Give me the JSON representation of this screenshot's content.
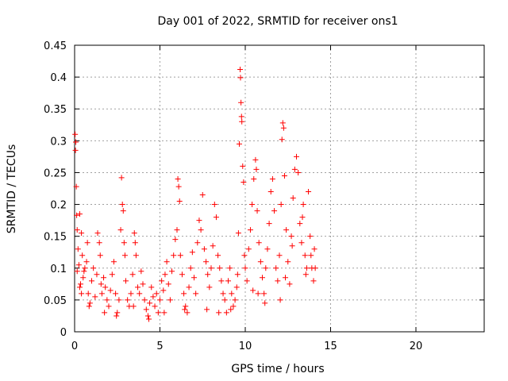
{
  "chart_data": {
    "type": "scatter",
    "title": "Day 001 of 2022, SRMTID for receiver ons1",
    "xlabel": "GPS time / hours",
    "ylabel": "SRMTID / TECUs",
    "xlim": [
      0,
      24
    ],
    "ylim": [
      0,
      0.45
    ],
    "xticks": [
      0,
      5,
      10,
      15,
      20
    ],
    "yticks": [
      0,
      0.05,
      0.1,
      0.15,
      0.2,
      0.25,
      0.3,
      0.35,
      0.4,
      0.45
    ],
    "grid": true,
    "marker": "+",
    "series": [
      {
        "name": "SRMTID",
        "color": "#ff0000",
        "points": [
          [
            0.03,
            0.31
          ],
          [
            0.05,
            0.285
          ],
          [
            0.07,
            0.298
          ],
          [
            0.1,
            0.228
          ],
          [
            0.12,
            0.183
          ],
          [
            0.15,
            0.16
          ],
          [
            0.2,
            0.13
          ],
          [
            0.25,
            0.105
          ],
          [
            0.3,
            0.07
          ],
          [
            0.4,
            0.06
          ],
          [
            0.5,
            0.085
          ],
          [
            0.6,
            0.1
          ],
          [
            0.3,
            0.185
          ],
          [
            0.4,
            0.155
          ],
          [
            0.45,
            0.12
          ],
          [
            0.55,
            0.095
          ],
          [
            0.7,
            0.11
          ],
          [
            0.75,
            0.14
          ],
          [
            0.8,
            0.06
          ],
          [
            0.9,
            0.045
          ],
          [
            1.0,
            0.08
          ],
          [
            1.1,
            0.1
          ],
          [
            1.2,
            0.055
          ],
          [
            1.3,
            0.09
          ],
          [
            1.35,
            0.155
          ],
          [
            1.45,
            0.14
          ],
          [
            1.5,
            0.12
          ],
          [
            1.55,
            0.075
          ],
          [
            1.6,
            0.06
          ],
          [
            1.7,
            0.085
          ],
          [
            1.8,
            0.07
          ],
          [
            1.9,
            0.05
          ],
          [
            2.0,
            0.04
          ],
          [
            2.1,
            0.065
          ],
          [
            2.2,
            0.09
          ],
          [
            2.3,
            0.11
          ],
          [
            2.4,
            0.06
          ],
          [
            2.5,
            0.03
          ],
          [
            2.6,
            0.05
          ],
          [
            2.7,
            0.16
          ],
          [
            2.75,
            0.242
          ],
          [
            2.8,
            0.2
          ],
          [
            2.85,
            0.19
          ],
          [
            2.9,
            0.14
          ],
          [
            2.95,
            0.12
          ],
          [
            3.0,
            0.08
          ],
          [
            3.1,
            0.05
          ],
          [
            3.2,
            0.04
          ],
          [
            3.3,
            0.06
          ],
          [
            3.4,
            0.09
          ],
          [
            3.5,
            0.155
          ],
          [
            3.55,
            0.14
          ],
          [
            3.6,
            0.12
          ],
          [
            3.7,
            0.07
          ],
          [
            3.8,
            0.06
          ],
          [
            3.9,
            0.095
          ],
          [
            4.0,
            0.075
          ],
          [
            4.1,
            0.05
          ],
          [
            4.2,
            0.035
          ],
          [
            4.3,
            0.025
          ],
          [
            4.4,
            0.045
          ],
          [
            4.5,
            0.07
          ],
          [
            4.6,
            0.055
          ],
          [
            4.7,
            0.04
          ],
          [
            4.8,
            0.06
          ],
          [
            4.9,
            0.03
          ],
          [
            5.0,
            0.05
          ],
          [
            5.1,
            0.08
          ],
          [
            5.2,
            0.065
          ],
          [
            5.3,
            0.09
          ],
          [
            5.4,
            0.11
          ],
          [
            5.5,
            0.075
          ],
          [
            5.6,
            0.05
          ],
          [
            5.7,
            0.095
          ],
          [
            5.8,
            0.12
          ],
          [
            5.9,
            0.145
          ],
          [
            6.0,
            0.16
          ],
          [
            6.05,
            0.24
          ],
          [
            6.1,
            0.228
          ],
          [
            6.15,
            0.205
          ],
          [
            6.2,
            0.12
          ],
          [
            6.3,
            0.09
          ],
          [
            6.4,
            0.06
          ],
          [
            6.5,
            0.04
          ],
          [
            6.6,
            0.03
          ],
          [
            6.7,
            0.07
          ],
          [
            6.8,
            0.1
          ],
          [
            6.9,
            0.125
          ],
          [
            7.0,
            0.085
          ],
          [
            7.1,
            0.06
          ],
          [
            7.2,
            0.14
          ],
          [
            7.3,
            0.175
          ],
          [
            7.4,
            0.16
          ],
          [
            7.5,
            0.215
          ],
          [
            7.6,
            0.13
          ],
          [
            7.7,
            0.11
          ],
          [
            7.8,
            0.09
          ],
          [
            7.9,
            0.07
          ],
          [
            8.0,
            0.1
          ],
          [
            8.1,
            0.135
          ],
          [
            8.2,
            0.2
          ],
          [
            8.3,
            0.18
          ],
          [
            8.4,
            0.12
          ],
          [
            8.5,
            0.1
          ],
          [
            8.6,
            0.08
          ],
          [
            8.7,
            0.06
          ],
          [
            8.8,
            0.05
          ],
          [
            8.9,
            0.03
          ],
          [
            9.0,
            0.08
          ],
          [
            9.1,
            0.1
          ],
          [
            9.2,
            0.06
          ],
          [
            9.3,
            0.04
          ],
          [
            9.4,
            0.05
          ],
          [
            9.5,
            0.07
          ],
          [
            9.55,
            0.09
          ],
          [
            9.6,
            0.155
          ],
          [
            9.65,
            0.295
          ],
          [
            9.7,
            0.412
          ],
          [
            9.72,
            0.399
          ],
          [
            9.75,
            0.36
          ],
          [
            9.78,
            0.338
          ],
          [
            9.8,
            0.33
          ],
          [
            9.85,
            0.26
          ],
          [
            9.9,
            0.235
          ],
          [
            9.95,
            0.12
          ],
          [
            10.0,
            0.1
          ],
          [
            10.1,
            0.08
          ],
          [
            10.2,
            0.13
          ],
          [
            10.3,
            0.16
          ],
          [
            10.4,
            0.2
          ],
          [
            10.5,
            0.24
          ],
          [
            10.6,
            0.27
          ],
          [
            10.65,
            0.255
          ],
          [
            10.7,
            0.19
          ],
          [
            10.8,
            0.14
          ],
          [
            10.9,
            0.11
          ],
          [
            11.0,
            0.085
          ],
          [
            11.1,
            0.06
          ],
          [
            11.2,
            0.1
          ],
          [
            11.3,
            0.13
          ],
          [
            11.4,
            0.17
          ],
          [
            11.5,
            0.22
          ],
          [
            11.6,
            0.24
          ],
          [
            11.7,
            0.19
          ],
          [
            11.8,
            0.1
          ],
          [
            11.9,
            0.08
          ],
          [
            12.0,
            0.12
          ],
          [
            12.1,
            0.2
          ],
          [
            12.15,
            0.302
          ],
          [
            12.2,
            0.328
          ],
          [
            12.25,
            0.32
          ],
          [
            12.3,
            0.245
          ],
          [
            12.4,
            0.16
          ],
          [
            12.5,
            0.11
          ],
          [
            12.6,
            0.075
          ],
          [
            12.7,
            0.15
          ],
          [
            12.8,
            0.21
          ],
          [
            12.9,
            0.255
          ],
          [
            13.0,
            0.275
          ],
          [
            13.1,
            0.25
          ],
          [
            13.2,
            0.17
          ],
          [
            13.3,
            0.14
          ],
          [
            13.4,
            0.2
          ],
          [
            13.5,
            0.12
          ],
          [
            13.6,
            0.1
          ],
          [
            13.7,
            0.22
          ],
          [
            13.8,
            0.15
          ],
          [
            13.9,
            0.1
          ],
          [
            14.0,
            0.08
          ],
          [
            14.05,
            0.13
          ],
          [
            14.1,
            0.1
          ],
          [
            12.05,
            0.05
          ],
          [
            12.35,
            0.085
          ],
          [
            11.15,
            0.045
          ],
          [
            10.45,
            0.065
          ],
          [
            10.75,
            0.06
          ],
          [
            9.15,
            0.035
          ],
          [
            8.45,
            0.03
          ],
          [
            7.75,
            0.035
          ],
          [
            6.45,
            0.035
          ],
          [
            5.25,
            0.03
          ],
          [
            4.35,
            0.02
          ],
          [
            3.45,
            0.04
          ],
          [
            2.45,
            0.025
          ],
          [
            1.75,
            0.03
          ],
          [
            0.85,
            0.04
          ],
          [
            0.15,
            0.095
          ],
          [
            0.35,
            0.075
          ],
          [
            13.35,
            0.18
          ],
          [
            13.55,
            0.09
          ],
          [
            13.85,
            0.12
          ],
          [
            12.75,
            0.135
          ]
        ]
      }
    ]
  }
}
